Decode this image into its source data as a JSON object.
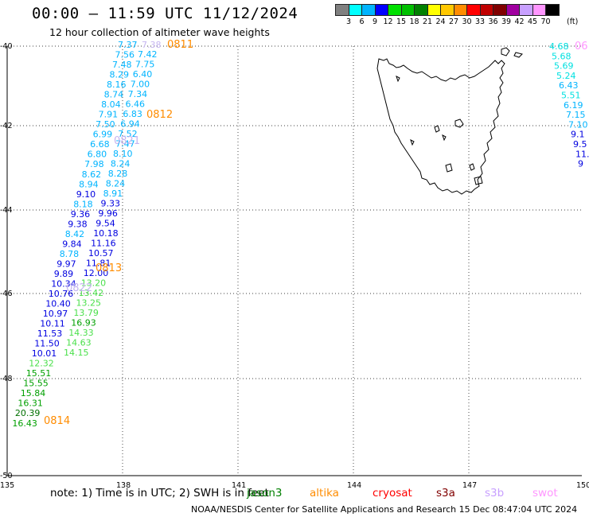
{
  "header": {
    "title": "00:00 — 11:59 UTC 11/12/2024",
    "subtitle": "12 hour collection of altimeter wave heights"
  },
  "scale": {
    "colors": [
      "#808080",
      "#00ffff",
      "#00b4ff",
      "#0000ff",
      "#00e000",
      "#00c000",
      "#008000",
      "#ffff00",
      "#ffc800",
      "#ff8c00",
      "#ff0000",
      "#c00000",
      "#800000",
      "#a000a0",
      "#c8a0ff",
      "#ff96ff",
      "#000000"
    ],
    "labels": [
      "3",
      "6",
      "9",
      "12",
      "15",
      "18",
      "21",
      "24",
      "27",
      "30",
      "33",
      "36",
      "39",
      "42",
      "45",
      "70"
    ],
    "unit": "(ft)"
  },
  "axes": {
    "lon_labels": [
      "135",
      "138",
      "141",
      "144",
      "147",
      "150"
    ],
    "lat_labels": [
      "-40",
      "-42",
      "-44",
      "-46",
      "-48",
      "-50"
    ]
  },
  "coastline": "Tasmania",
  "track_left": [
    {
      "v": "7.37",
      "c": "#00b4ff"
    },
    {
      "v": "7.56",
      "c": "#00b4ff"
    },
    {
      "v": "7.48",
      "c": "#00b4ff"
    },
    {
      "v": "8.29",
      "c": "#00b4ff"
    },
    {
      "v": "8.16",
      "c": "#00b4ff"
    },
    {
      "v": "8.74",
      "c": "#00b4ff"
    },
    {
      "v": "8.04",
      "c": "#00b4ff"
    },
    {
      "v": "7.91",
      "c": "#00b4ff"
    },
    {
      "v": "7.50",
      "c": "#00b4ff"
    },
    {
      "v": "6.99",
      "c": "#00b4ff"
    },
    {
      "v": "6.68",
      "c": "#00b4ff"
    },
    {
      "v": "6.80",
      "c": "#00b4ff"
    },
    {
      "v": "7.98",
      "c": "#00b4ff"
    },
    {
      "v": "8.62",
      "c": "#00b4ff"
    },
    {
      "v": "8.94",
      "c": "#00b4ff"
    },
    {
      "v": "9.10",
      "c": "#0000e0"
    },
    {
      "v": "8.18",
      "c": "#00b4ff"
    },
    {
      "v": "9.36",
      "c": "#0000e0"
    },
    {
      "v": "9.38",
      "c": "#0000e0"
    },
    {
      "v": "8.42",
      "c": "#00b4ff"
    },
    {
      "v": "9.84",
      "c": "#0000e0"
    },
    {
      "v": "8.78",
      "c": "#00b4ff"
    },
    {
      "v": "9.97",
      "c": "#0000e0"
    },
    {
      "v": "9.89",
      "c": "#0000e0"
    },
    {
      "v": "10.34",
      "c": "#0000e0"
    },
    {
      "v": "10.76",
      "c": "#0000e0"
    },
    {
      "v": "10.40",
      "c": "#0000e0"
    },
    {
      "v": "10.97",
      "c": "#0000e0"
    },
    {
      "v": "10.11",
      "c": "#0000e0"
    },
    {
      "v": "11.53",
      "c": "#0000e0"
    },
    {
      "v": "11.50",
      "c": "#0000e0"
    },
    {
      "v": "10.01",
      "c": "#0000e0"
    },
    {
      "v": "12.32",
      "c": "#4be04b"
    },
    {
      "v": "15.51",
      "c": "#00a000"
    },
    {
      "v": "15.55",
      "c": "#00a000"
    },
    {
      "v": "15.84",
      "c": "#00a000"
    },
    {
      "v": "16.31",
      "c": "#00a000"
    },
    {
      "v": "20.39",
      "c": "#007000"
    },
    {
      "v": "16.43",
      "c": "#00a000"
    }
  ],
  "track_mid": [
    {
      "v": "7.42",
      "c": "#00b4ff"
    },
    {
      "v": "7.75",
      "c": "#00b4ff"
    },
    {
      "v": "6.40",
      "c": "#00b4ff"
    },
    {
      "v": "7.00",
      "c": "#00b4ff"
    },
    {
      "v": "7.34",
      "c": "#00b4ff"
    },
    {
      "v": "6.46",
      "c": "#00b4ff"
    },
    {
      "v": "6.83",
      "c": "#00b4ff"
    },
    {
      "v": "6.94",
      "c": "#00b4ff"
    },
    {
      "v": "7.52",
      "c": "#00b4ff"
    },
    {
      "v": "7.47",
      "c": "#00b4ff"
    },
    {
      "v": "8.10",
      "c": "#00b4ff"
    },
    {
      "v": "8.24",
      "c": "#00b4ff"
    },
    {
      "v": "8.28",
      "c": "#00b4ff"
    },
    {
      "v": "8.24",
      "c": "#00b4ff"
    },
    {
      "v": "8.91",
      "c": "#00b4ff"
    },
    {
      "v": "9.33",
      "c": "#0000e0"
    },
    {
      "v": "9.96",
      "c": "#0000e0"
    },
    {
      "v": "9.54",
      "c": "#0000e0"
    },
    {
      "v": "10.18",
      "c": "#0000e0"
    },
    {
      "v": "11.16",
      "c": "#0000e0"
    },
    {
      "v": "10.57",
      "c": "#0000e0"
    },
    {
      "v": "11.81",
      "c": "#0000e0"
    },
    {
      "v": "12.00",
      "c": "#0000e0"
    },
    {
      "v": "13.20",
      "c": "#4be04b"
    },
    {
      "v": "13.42",
      "c": "#4be04b"
    },
    {
      "v": "13.25",
      "c": "#4be04b"
    },
    {
      "v": "13.79",
      "c": "#4be04b"
    },
    {
      "v": "16.93",
      "c": "#00a000"
    },
    {
      "v": "14.33",
      "c": "#4be04b"
    },
    {
      "v": "14.63",
      "c": "#4be04b"
    },
    {
      "v": "14.15",
      "c": "#4be04b"
    }
  ],
  "track_right": [
    {
      "v": "4.68",
      "c": "#00e0e0"
    },
    {
      "v": "5.68",
      "c": "#00e0e0"
    },
    {
      "v": "5.69",
      "c": "#00e0e0"
    },
    {
      "v": "5.24",
      "c": "#00e0e0"
    },
    {
      "v": "6.43",
      "c": "#00b4ff"
    },
    {
      "v": "5.51",
      "c": "#00e0e0"
    },
    {
      "v": "6.19",
      "c": "#00b4ff"
    },
    {
      "v": "7.15",
      "c": "#00b4ff"
    },
    {
      "v": "7.10",
      "c": "#00b4ff"
    },
    {
      "v": "9.1",
      "c": "#0000e0"
    },
    {
      "v": "9.5",
      "c": "#0000e0"
    },
    {
      "v": "11.",
      "c": "#0000e0"
    },
    {
      "v": "9",
      "c": "#0000e0"
    }
  ],
  "time_labels": [
    "0811",
    "0812",
    "0813",
    "0814"
  ],
  "sat_labels": [
    "0821",
    "0822"
  ],
  "edge_labels": [
    "06",
    "7.38"
  ],
  "note": "note:  1) Time is in UTC; 2) SWH is in feet",
  "satellites": [
    {
      "name": "jason3",
      "color": "#008000"
    },
    {
      "name": "altika",
      "color": "#ff8c00"
    },
    {
      "name": "cryosat",
      "color": "#ff0000"
    },
    {
      "name": "s3a",
      "color": "#800000"
    },
    {
      "name": "s3b",
      "color": "#c8a0ff"
    },
    {
      "name": "swot",
      "color": "#ff96ff"
    }
  ],
  "footer": "NOAA/NESDIS Center for Satellite Applications and Research    15 Dec 08:47:04 UTC 2024"
}
